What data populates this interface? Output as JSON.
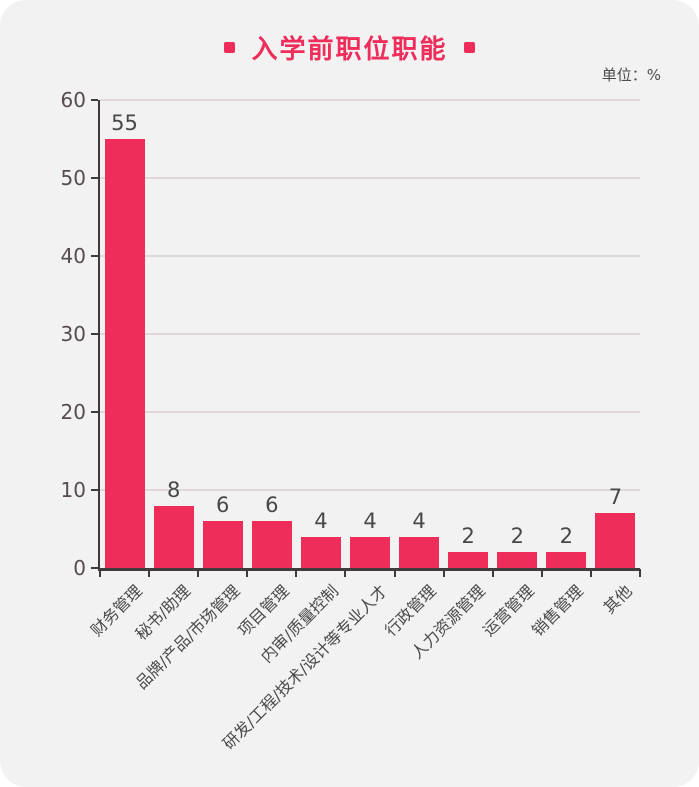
{
  "header": {
    "title": "入学前职位职能",
    "unit_label": "单位：%"
  },
  "colors": {
    "accent": "#ee2d5b",
    "panel_background": "#f2f2f3",
    "grid": "#ded8da",
    "axis": "#403a3d",
    "y_label": "#564c50",
    "value_label": "#474747",
    "category_label": "#4a4a4a"
  },
  "chart_data": {
    "type": "bar",
    "title": "入学前职位职能",
    "unit": "%",
    "categories": [
      "财务管理",
      "秘书/助理",
      "品牌/产品/市场管理",
      "项目管理",
      "内审/质量控制",
      "研发/工程/技术/设计等专业人才",
      "行政管理",
      "人力资源管理",
      "运营管理",
      "销售管理",
      "其他"
    ],
    "values": [
      55,
      8,
      6,
      6,
      4,
      4,
      4,
      2,
      2,
      2,
      7
    ],
    "xlabel": "",
    "ylabel": "",
    "ylim": [
      0,
      60
    ],
    "ytick_step": 10,
    "grid": true,
    "legend": "none",
    "bar_color": "#ee2d5b"
  }
}
